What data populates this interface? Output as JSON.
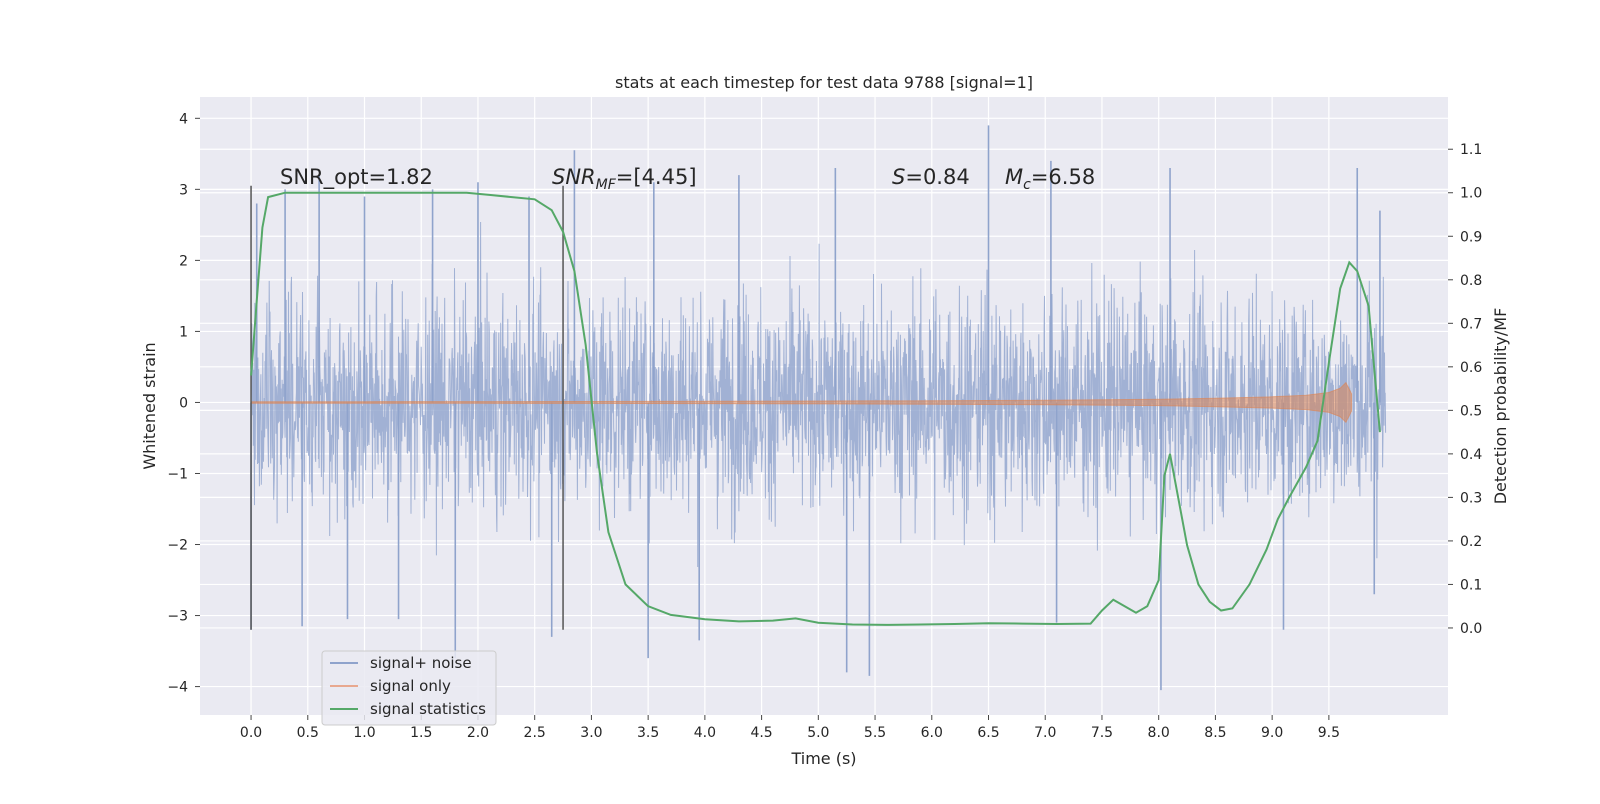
{
  "chart_data": {
    "type": "line",
    "title": "stats at each timestep for test data 9788 [signal=1]",
    "xlabel": "Time (s)",
    "ylabel_left": "Whitened strain",
    "ylabel_right": "Detection probability/MF",
    "xlim": [
      -0.45,
      10.55
    ],
    "ylim_left": [
      -4.4,
      4.3
    ],
    "ylim_right": [
      -0.2,
      1.22
    ],
    "xticks": [
      "0.0",
      "0.5",
      "1.0",
      "1.5",
      "2.0",
      "2.5",
      "3.0",
      "3.5",
      "4.0",
      "4.5",
      "5.0",
      "5.5",
      "6.0",
      "6.5",
      "7.0",
      "7.5",
      "8.0",
      "8.5",
      "9.0",
      "9.5"
    ],
    "yticks_left": [
      "4",
      "3",
      "2",
      "1",
      "0",
      "−1",
      "−2",
      "−3",
      "−4"
    ],
    "yticks_right": [
      "1.1",
      "1.0",
      "0.9",
      "0.8",
      "0.7",
      "0.6",
      "0.5",
      "0.4",
      "0.3",
      "0.2",
      "0.1",
      "0.0"
    ],
    "grid": true,
    "legend_position": "lower-left",
    "legend": [
      {
        "label": "signal+ noise",
        "color": "#8fa3cc"
      },
      {
        "label": "signal only",
        "color": "#e8a88f"
      },
      {
        "label": "signal statistics",
        "color": "#55a868"
      }
    ],
    "annotations": {
      "snr_opt": "SNR_opt=1.82",
      "snr_mf_prefix": "SNR",
      "snr_mf_sub": "MF",
      "snr_mf_value": "=[4.45]",
      "s_prefix": "S",
      "s_value": "=0.84",
      "mc_prefix": "M",
      "mc_sub": "c",
      "mc_value": "=6.58"
    },
    "markers": {
      "vertical_lines_x": [
        0.0,
        2.75
      ]
    },
    "series": [
      {
        "name": "signal+ noise",
        "color": "#8fa3cc",
        "x_range": [
          0.0,
          10.0
        ],
        "typical_envelope": [
          -2.4,
          2.4
        ],
        "spikes": [
          [
            0.05,
            2.8
          ],
          [
            0.3,
            3.0
          ],
          [
            0.6,
            3.2
          ],
          [
            1.0,
            2.9
          ],
          [
            1.6,
            3.0
          ],
          [
            2.0,
            3.1
          ],
          [
            2.45,
            2.9
          ],
          [
            2.85,
            3.55
          ],
          [
            3.55,
            3.1
          ],
          [
            4.3,
            3.2
          ],
          [
            5.15,
            3.3
          ],
          [
            6.5,
            3.9
          ],
          [
            7.05,
            3.4
          ],
          [
            8.1,
            3.3
          ],
          [
            9.75,
            3.3
          ],
          [
            9.95,
            2.7
          ],
          [
            0.0,
            -3.2
          ],
          [
            0.45,
            -3.15
          ],
          [
            0.85,
            -3.05
          ],
          [
            1.3,
            -3.05
          ],
          [
            1.8,
            -3.6
          ],
          [
            2.65,
            -3.3
          ],
          [
            3.5,
            -3.6
          ],
          [
            3.95,
            -3.35
          ],
          [
            5.25,
            -3.8
          ],
          [
            5.45,
            -3.85
          ],
          [
            7.1,
            -3.1
          ],
          [
            8.02,
            -4.05
          ],
          [
            9.1,
            -3.2
          ],
          [
            9.9,
            -2.7
          ]
        ]
      },
      {
        "name": "signal only",
        "color": "#dd8452",
        "x": [
          0,
          1,
          2,
          3,
          4,
          5,
          6,
          7,
          8,
          8.5,
          9,
          9.3,
          9.5,
          9.6,
          9.65,
          9.7
        ],
        "amplitude": [
          0.01,
          0.01,
          0.012,
          0.014,
          0.016,
          0.02,
          0.025,
          0.032,
          0.045,
          0.06,
          0.08,
          0.1,
          0.14,
          0.2,
          0.28,
          0.12
        ]
      },
      {
        "name": "signal statistics",
        "color": "#55a868",
        "axis": "right",
        "x": [
          0.0,
          0.05,
          0.1,
          0.15,
          0.3,
          0.5,
          1.0,
          1.5,
          1.9,
          2.1,
          2.3,
          2.5,
          2.65,
          2.75,
          2.85,
          2.95,
          3.05,
          3.15,
          3.3,
          3.5,
          3.7,
          4.0,
          4.3,
          4.6,
          4.8,
          5.0,
          5.3,
          5.6,
          5.9,
          6.2,
          6.5,
          6.8,
          7.1,
          7.4,
          7.5,
          7.6,
          7.7,
          7.8,
          7.9,
          8.0,
          8.05,
          8.1,
          8.15,
          8.25,
          8.35,
          8.45,
          8.55,
          8.65,
          8.8,
          8.95,
          9.05,
          9.15,
          9.3,
          9.4,
          9.5,
          9.6,
          9.68,
          9.75,
          9.85,
          9.95
        ],
        "values": [
          0.58,
          0.75,
          0.92,
          0.99,
          1.0,
          1.0,
          1.0,
          1.0,
          1.0,
          0.995,
          0.99,
          0.985,
          0.96,
          0.91,
          0.82,
          0.65,
          0.4,
          0.22,
          0.1,
          0.05,
          0.03,
          0.02,
          0.015,
          0.017,
          0.022,
          0.012,
          0.008,
          0.007,
          0.008,
          0.009,
          0.011,
          0.01,
          0.009,
          0.01,
          0.04,
          0.065,
          0.05,
          0.035,
          0.05,
          0.11,
          0.35,
          0.4,
          0.33,
          0.19,
          0.1,
          0.06,
          0.04,
          0.045,
          0.1,
          0.18,
          0.25,
          0.3,
          0.37,
          0.43,
          0.61,
          0.78,
          0.84,
          0.82,
          0.74,
          0.45
        ]
      }
    ]
  }
}
